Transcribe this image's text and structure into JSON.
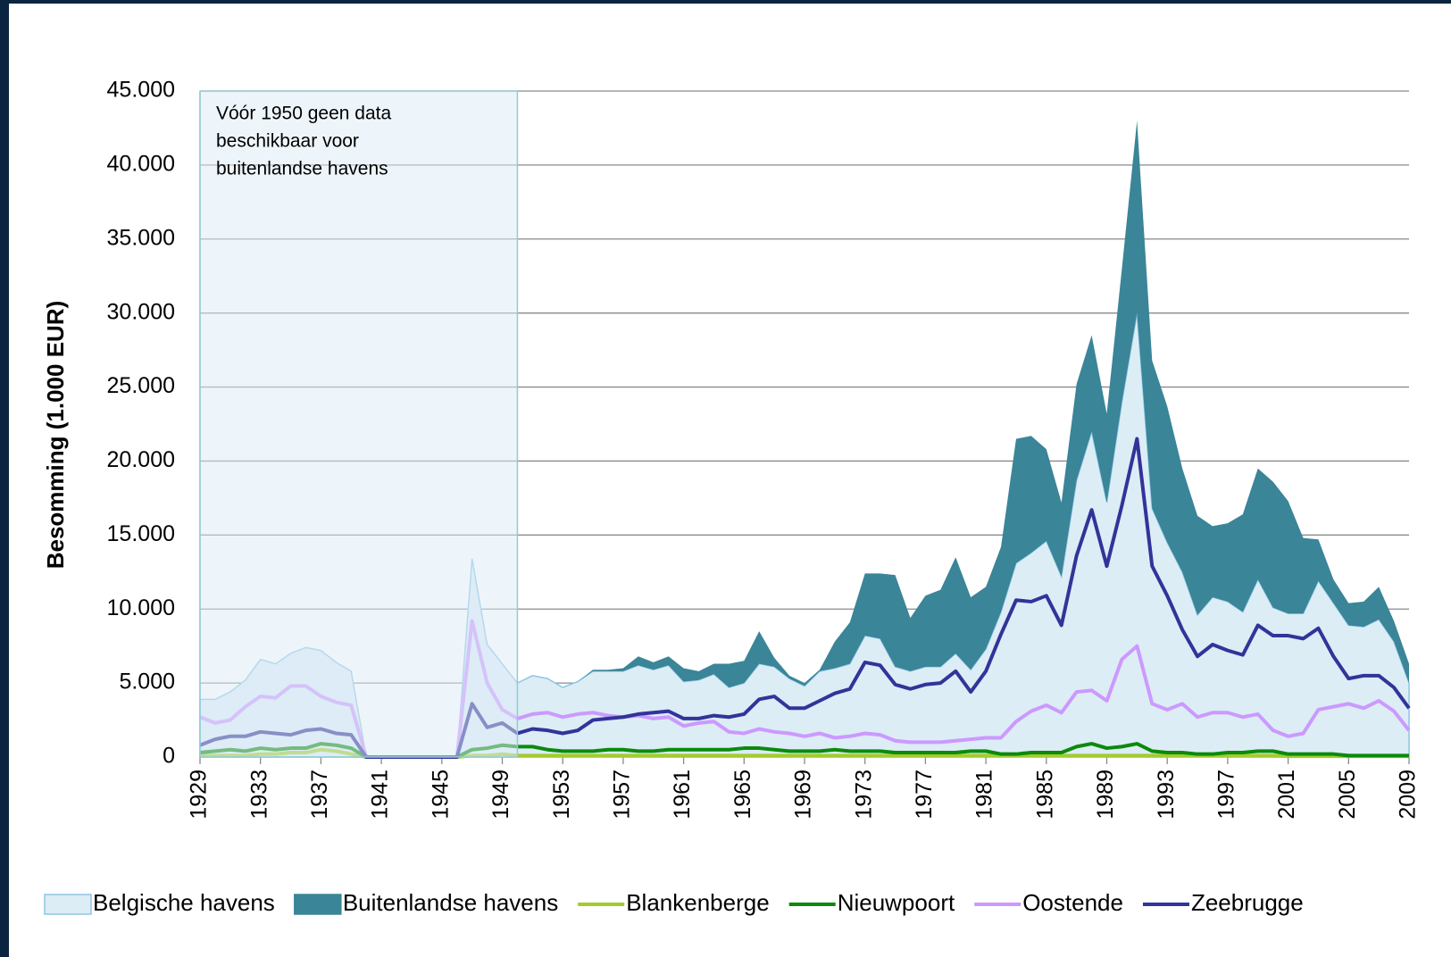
{
  "chart_data": {
    "type": "area",
    "y_label": "Besomming (1.000 EUR)",
    "annotation": {
      "lines": [
        "Vóór 1950 geen data",
        "beschikbaar voor",
        "buitenlandse havens"
      ],
      "xlim": [
        1929,
        1950
      ]
    },
    "x": [
      1929,
      1930,
      1931,
      1932,
      1933,
      1934,
      1935,
      1936,
      1937,
      1938,
      1939,
      1940,
      1941,
      1942,
      1943,
      1944,
      1945,
      1946,
      1947,
      1948,
      1949,
      1950,
      1951,
      1952,
      1953,
      1954,
      1955,
      1956,
      1957,
      1958,
      1959,
      1960,
      1961,
      1962,
      1963,
      1964,
      1965,
      1966,
      1967,
      1968,
      1969,
      1970,
      1971,
      1972,
      1973,
      1974,
      1975,
      1976,
      1977,
      1978,
      1979,
      1980,
      1981,
      1982,
      1983,
      1984,
      1985,
      1986,
      1987,
      1988,
      1989,
      1990,
      1991,
      1992,
      1993,
      1994,
      1995,
      1996,
      1997,
      1998,
      1999,
      2000,
      2001,
      2002,
      2003,
      2004,
      2005,
      2006,
      2007,
      2008,
      2009
    ],
    "xlim": [
      1929,
      2009
    ],
    "xticks": [
      1929,
      1933,
      1937,
      1941,
      1945,
      1949,
      1953,
      1957,
      1961,
      1965,
      1969,
      1973,
      1977,
      1981,
      1985,
      1989,
      1993,
      1997,
      2001,
      2005,
      2009
    ],
    "ylim": [
      0,
      45000
    ],
    "yticks": [
      0,
      {
        "value": 5000,
        "label": "5.000"
      },
      {
        "value": 10000,
        "label": "10.000"
      },
      {
        "value": 15000,
        "label": "15.000"
      },
      {
        "value": 20000,
        "label": "20.000"
      },
      {
        "value": 25000,
        "label": "25.000"
      },
      {
        "value": 30000,
        "label": "30.000"
      },
      {
        "value": 35000,
        "label": "35.000"
      },
      {
        "value": 40000,
        "label": "40.000"
      },
      {
        "value": 45000,
        "label": "45.000"
      }
    ],
    "grid": true,
    "legend": "bottom",
    "series": [
      {
        "name": "Belgische havens",
        "style": "area",
        "color": "#dcedf6",
        "edge": "#8ec5e3",
        "values": [
          3900,
          3900,
          4400,
          5200,
          6600,
          6300,
          7000,
          7400,
          7200,
          6400,
          5800,
          0,
          0,
          0,
          0,
          0,
          0,
          0,
          13400,
          7600,
          6300,
          5000,
          5500,
          5300,
          4700,
          5100,
          5800,
          5800,
          5800,
          6200,
          5900,
          6200,
          5100,
          5200,
          5600,
          4700,
          5000,
          6300,
          6100,
          5300,
          4800,
          5800,
          6000,
          6300,
          8200,
          8000,
          6100,
          5800,
          6100,
          6100,
          7000,
          5900,
          7300,
          9800,
          13100,
          13800,
          14600,
          12200,
          18700,
          22000,
          17200,
          24000,
          30000,
          16800,
          14500,
          12500,
          9600,
          10800,
          10500,
          9800,
          12000,
          10100,
          9700,
          9700,
          11900,
          10400,
          8900,
          8800,
          9300,
          7800,
          5000
        ]
      },
      {
        "name": "Buitenlandse havens",
        "style": "area",
        "stacked": true,
        "color": "#3a8598",
        "values": [
          null,
          null,
          null,
          null,
          null,
          null,
          null,
          null,
          null,
          null,
          null,
          null,
          null,
          null,
          null,
          null,
          null,
          null,
          null,
          null,
          null,
          0,
          0,
          0,
          0,
          0,
          100,
          100,
          200,
          600,
          500,
          600,
          900,
          600,
          700,
          1600,
          1500,
          2200,
          600,
          200,
          200,
          100,
          1800,
          2800,
          4200,
          4400,
          6200,
          3600,
          4800,
          5200,
          6500,
          4900,
          4200,
          4400,
          8400,
          7900,
          6200,
          5000,
          6500,
          6500,
          6000,
          9000,
          13000,
          10000,
          9200,
          7000,
          6700,
          4800,
          5300,
          6600,
          7500,
          8500,
          7600,
          5100,
          2800,
          1600,
          1500,
          1700,
          2200,
          1400,
          1300
        ]
      },
      {
        "name": "Blankenberge",
        "style": "line",
        "color": "#a2cc2c",
        "values": [
          100,
          100,
          100,
          100,
          200,
          200,
          300,
          300,
          500,
          400,
          200,
          0,
          0,
          0,
          0,
          0,
          0,
          0,
          100,
          100,
          200,
          100,
          100,
          100,
          100,
          100,
          100,
          100,
          100,
          100,
          100,
          100,
          100,
          100,
          100,
          100,
          100,
          100,
          100,
          100,
          100,
          100,
          100,
          100,
          100,
          100,
          100,
          100,
          100,
          100,
          100,
          100,
          100,
          100,
          100,
          100,
          100,
          100,
          100,
          100,
          100,
          100,
          100,
          100,
          100,
          100,
          100,
          100,
          100,
          100,
          100,
          100,
          50,
          50,
          50,
          50,
          50,
          50,
          50,
          50,
          50
        ]
      },
      {
        "name": "Nieuwpoort",
        "style": "line",
        "color": "#0b8a0b",
        "values": [
          300,
          400,
          500,
          400,
          600,
          500,
          600,
          600,
          900,
          800,
          600,
          0,
          0,
          0,
          0,
          0,
          0,
          0,
          500,
          600,
          800,
          700,
          700,
          500,
          400,
          400,
          400,
          500,
          500,
          400,
          400,
          500,
          500,
          500,
          500,
          500,
          600,
          600,
          500,
          400,
          400,
          400,
          500,
          400,
          400,
          400,
          300,
          300,
          300,
          300,
          300,
          400,
          400,
          200,
          200,
          300,
          300,
          300,
          700,
          900,
          600,
          700,
          900,
          400,
          300,
          300,
          200,
          200,
          300,
          300,
          400,
          400,
          200,
          200,
          200,
          200,
          100,
          100,
          100,
          100,
          100
        ]
      },
      {
        "name": "Oostende",
        "style": "line",
        "color": "#cc99ff",
        "values": [
          2700,
          2300,
          2500,
          3400,
          4100,
          4000,
          4800,
          4800,
          4100,
          3700,
          3500,
          0,
          0,
          0,
          0,
          0,
          0,
          0,
          9200,
          5000,
          3200,
          2600,
          2900,
          3000,
          2700,
          2900,
          3000,
          2800,
          2700,
          2800,
          2600,
          2700,
          2100,
          2300,
          2400,
          1700,
          1600,
          1900,
          1700,
          1600,
          1400,
          1600,
          1300,
          1400,
          1600,
          1500,
          1100,
          1000,
          1000,
          1000,
          1100,
          1200,
          1300,
          1300,
          2400,
          3100,
          3500,
          3000,
          4400,
          4500,
          3800,
          6600,
          7500,
          3600,
          3200,
          3600,
          2700,
          3000,
          3000,
          2700,
          2900,
          1800,
          1400,
          1600,
          3200,
          3400,
          3600,
          3300,
          3800,
          3100,
          1800
        ]
      },
      {
        "name": "Zeebrugge",
        "style": "line",
        "color": "#333399",
        "values": [
          800,
          1200,
          1400,
          1400,
          1700,
          1600,
          1500,
          1800,
          1900,
          1600,
          1500,
          0,
          0,
          0,
          0,
          0,
          0,
          0,
          3600,
          2000,
          2300,
          1600,
          1900,
          1800,
          1600,
          1800,
          2500,
          2600,
          2700,
          2900,
          3000,
          3100,
          2600,
          2600,
          2800,
          2700,
          2900,
          3900,
          4100,
          3300,
          3300,
          3800,
          4300,
          4600,
          6400,
          6200,
          4900,
          4600,
          4900,
          5000,
          5800,
          4400,
          5800,
          8300,
          10600,
          10500,
          10900,
          8900,
          13600,
          16700,
          12900,
          17000,
          21500,
          12900,
          10900,
          8600,
          6800,
          7600,
          7200,
          6900,
          8900,
          8200,
          8200,
          8000,
          8700,
          6800,
          5300,
          5500,
          5500,
          4700,
          3300
        ]
      }
    ]
  }
}
